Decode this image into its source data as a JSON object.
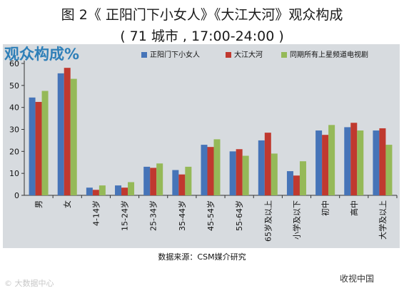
{
  "header": {
    "title": "图 2《 正阳门下小女人》《大江大河》观众构成",
    "subtitle": "( 71 城市 , 17:00-24:00 )"
  },
  "panel_label": "观众构成%",
  "source_text": "数据来源：CSM媒介研究",
  "watermark_left": "© 大数据中心",
  "watermark_right": "收视中国",
  "colors": {
    "s1": "#4674b8",
    "s2": "#c0392f",
    "s3": "#95b958",
    "panel_bg": "#d7dbdf"
  },
  "chart_data": {
    "type": "bar",
    "title": "观众构成%",
    "ylim": [
      0,
      60
    ],
    "yticks": [
      0,
      10,
      20,
      30,
      40,
      50,
      60
    ],
    "grid": false,
    "legend_position": "top",
    "categories": [
      "男",
      "女",
      "4-14岁",
      "15-24岁",
      "25-34岁",
      "35-44岁",
      "45-54岁",
      "55-64岁",
      "65岁及以上",
      "小学及以下",
      "初中",
      "高中",
      "大学及以上"
    ],
    "series": [
      {
        "name": "正阳门下小女人",
        "values": [
          44.5,
          55.5,
          3.5,
          4.5,
          13,
          11.5,
          23,
          20,
          25,
          11,
          29.5,
          31,
          29.5
        ]
      },
      {
        "name": "大江大河",
        "values": [
          42.5,
          58,
          2.5,
          3.5,
          12.5,
          9.5,
          22,
          21,
          28.5,
          9,
          27.5,
          33,
          30.5
        ]
      },
      {
        "name": "同期所有上星频道电视剧",
        "values": [
          47.5,
          53,
          4.5,
          6,
          14.5,
          13,
          25.5,
          18,
          19,
          15.5,
          32,
          29.5,
          23
        ]
      }
    ]
  }
}
